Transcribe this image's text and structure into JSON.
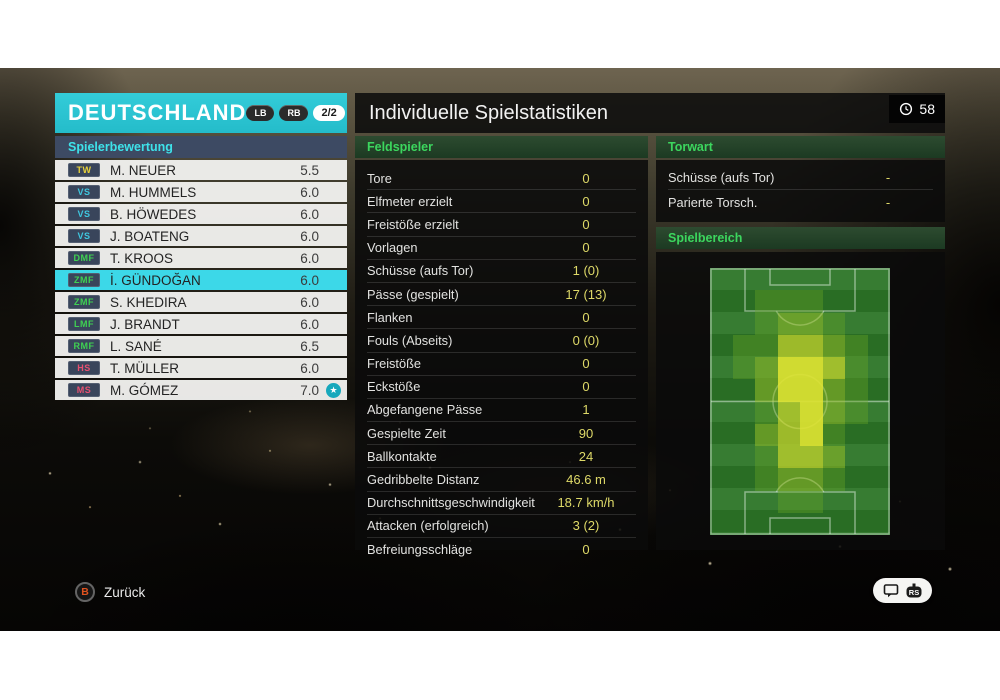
{
  "team_panel": {
    "title": "DEUTSCHLAND",
    "badge_lb": "LB",
    "badge_rb": "RB",
    "page_indicator": "2/2",
    "section_title": "Spielerbewertung",
    "position_colors": {
      "TW": "#e8d23a",
      "VS": "#3fc8e0",
      "DMF": "#3fd052",
      "ZMF": "#3fd052",
      "LMF": "#3fd052",
      "RMF": "#3fd052",
      "HS": "#e85070",
      "MS": "#e85070"
    },
    "players": [
      {
        "pos": "TW",
        "name": "M. NEUER",
        "rating": "5.5",
        "selected": false,
        "star": false
      },
      {
        "pos": "VS",
        "name": "M. HUMMELS",
        "rating": "6.0",
        "selected": false,
        "star": false
      },
      {
        "pos": "VS",
        "name": "B. HÖWEDES",
        "rating": "6.0",
        "selected": false,
        "star": false
      },
      {
        "pos": "VS",
        "name": "J. BOATENG",
        "rating": "6.0",
        "selected": false,
        "star": false
      },
      {
        "pos": "DMF",
        "name": "T. KROOS",
        "rating": "6.0",
        "selected": false,
        "star": false
      },
      {
        "pos": "ZMF",
        "name": "İ. GÜNDOĞAN",
        "rating": "6.0",
        "selected": true,
        "star": false
      },
      {
        "pos": "ZMF",
        "name": "S. KHEDIRA",
        "rating": "6.0",
        "selected": false,
        "star": false
      },
      {
        "pos": "LMF",
        "name": "J. BRANDT",
        "rating": "6.0",
        "selected": false,
        "star": false
      },
      {
        "pos": "RMF",
        "name": "L. SANÉ",
        "rating": "6.5",
        "selected": false,
        "star": false
      },
      {
        "pos": "HS",
        "name": "T. MÜLLER",
        "rating": "6.0",
        "selected": false,
        "star": false
      },
      {
        "pos": "MS",
        "name": "M. GÓMEZ",
        "rating": "7.0",
        "selected": false,
        "star": true
      }
    ]
  },
  "main": {
    "title": "Individuelle Spielstatistiken",
    "clock": "58",
    "feldspieler": {
      "section_title": "Feldspieler",
      "rows": [
        {
          "label": "Tore",
          "value": "0"
        },
        {
          "label": "Elfmeter erzielt",
          "value": "0"
        },
        {
          "label": "Freistöße erzielt",
          "value": "0"
        },
        {
          "label": "Vorlagen",
          "value": "0"
        },
        {
          "label": "Schüsse (aufs Tor)",
          "value": "1 (0)"
        },
        {
          "label": "Pässe (gespielt)",
          "value": "17 (13)"
        },
        {
          "label": "Flanken",
          "value": "0"
        },
        {
          "label": "Fouls (Abseits)",
          "value": "0 (0)"
        },
        {
          "label": "Freistöße",
          "value": "0"
        },
        {
          "label": "Eckstöße",
          "value": "0"
        },
        {
          "label": "Abgefangene Pässe",
          "value": "1"
        },
        {
          "label": "Gespielte Zeit",
          "value": "90"
        },
        {
          "label": "Ballkontakte",
          "value": "24"
        },
        {
          "label": "Gedribbelte Distanz",
          "value": "46.6 m"
        },
        {
          "label": "Durchschnittsgeschwindigkeit",
          "value": "18.7 km/h"
        },
        {
          "label": "Attacken (erfolgreich)",
          "value": "3 (2)"
        },
        {
          "label": "Befreiungsschläge",
          "value": "0"
        }
      ]
    },
    "torwart": {
      "section_title": "Torwart",
      "rows": [
        {
          "label": "Schüsse (aufs Tor)",
          "value": "-"
        },
        {
          "label": "Parierte Torsch.",
          "value": "-"
        }
      ]
    },
    "spielbereich": {
      "section_title": "Spielbereich",
      "heatmap": {
        "grid_cols": 8,
        "grid_rows": 12,
        "palette": [
          "transparent",
          "rgba(105,165,38,0.38)",
          "rgba(150,190,40,0.55)",
          "rgba(196,212,44,0.75)",
          "rgba(220,226,50,0.93)"
        ],
        "intensity": [
          [
            0,
            0,
            0,
            0,
            0,
            0,
            0,
            0
          ],
          [
            0,
            0,
            1,
            1,
            1,
            0,
            0,
            0
          ],
          [
            0,
            0,
            1,
            2,
            2,
            1,
            0,
            0
          ],
          [
            0,
            1,
            1,
            3,
            3,
            2,
            1,
            0
          ],
          [
            0,
            1,
            2,
            4,
            4,
            3,
            1,
            0
          ],
          [
            0,
            0,
            2,
            4,
            4,
            2,
            1,
            0
          ],
          [
            0,
            0,
            1,
            3,
            4,
            2,
            1,
            0
          ],
          [
            0,
            0,
            2,
            3,
            4,
            1,
            0,
            0
          ],
          [
            0,
            0,
            1,
            3,
            3,
            2,
            0,
            0
          ],
          [
            0,
            0,
            1,
            2,
            2,
            1,
            0,
            0
          ],
          [
            0,
            0,
            0,
            1,
            1,
            0,
            0,
            0
          ],
          [
            0,
            0,
            0,
            0,
            0,
            0,
            0,
            0
          ]
        ]
      }
    }
  },
  "footer": {
    "back_button_label": "B",
    "back_label": "Zurück",
    "stick_icon_label": "RS"
  },
  "colors": {
    "accent_cyan": "#2ac4d3",
    "selected_row_cyan": "#3cd8e8",
    "value_yellow": "#ded968",
    "section_green": "#3cd65e",
    "panel_navy": "#3d4a63",
    "pitch_green": "#2c7527"
  }
}
